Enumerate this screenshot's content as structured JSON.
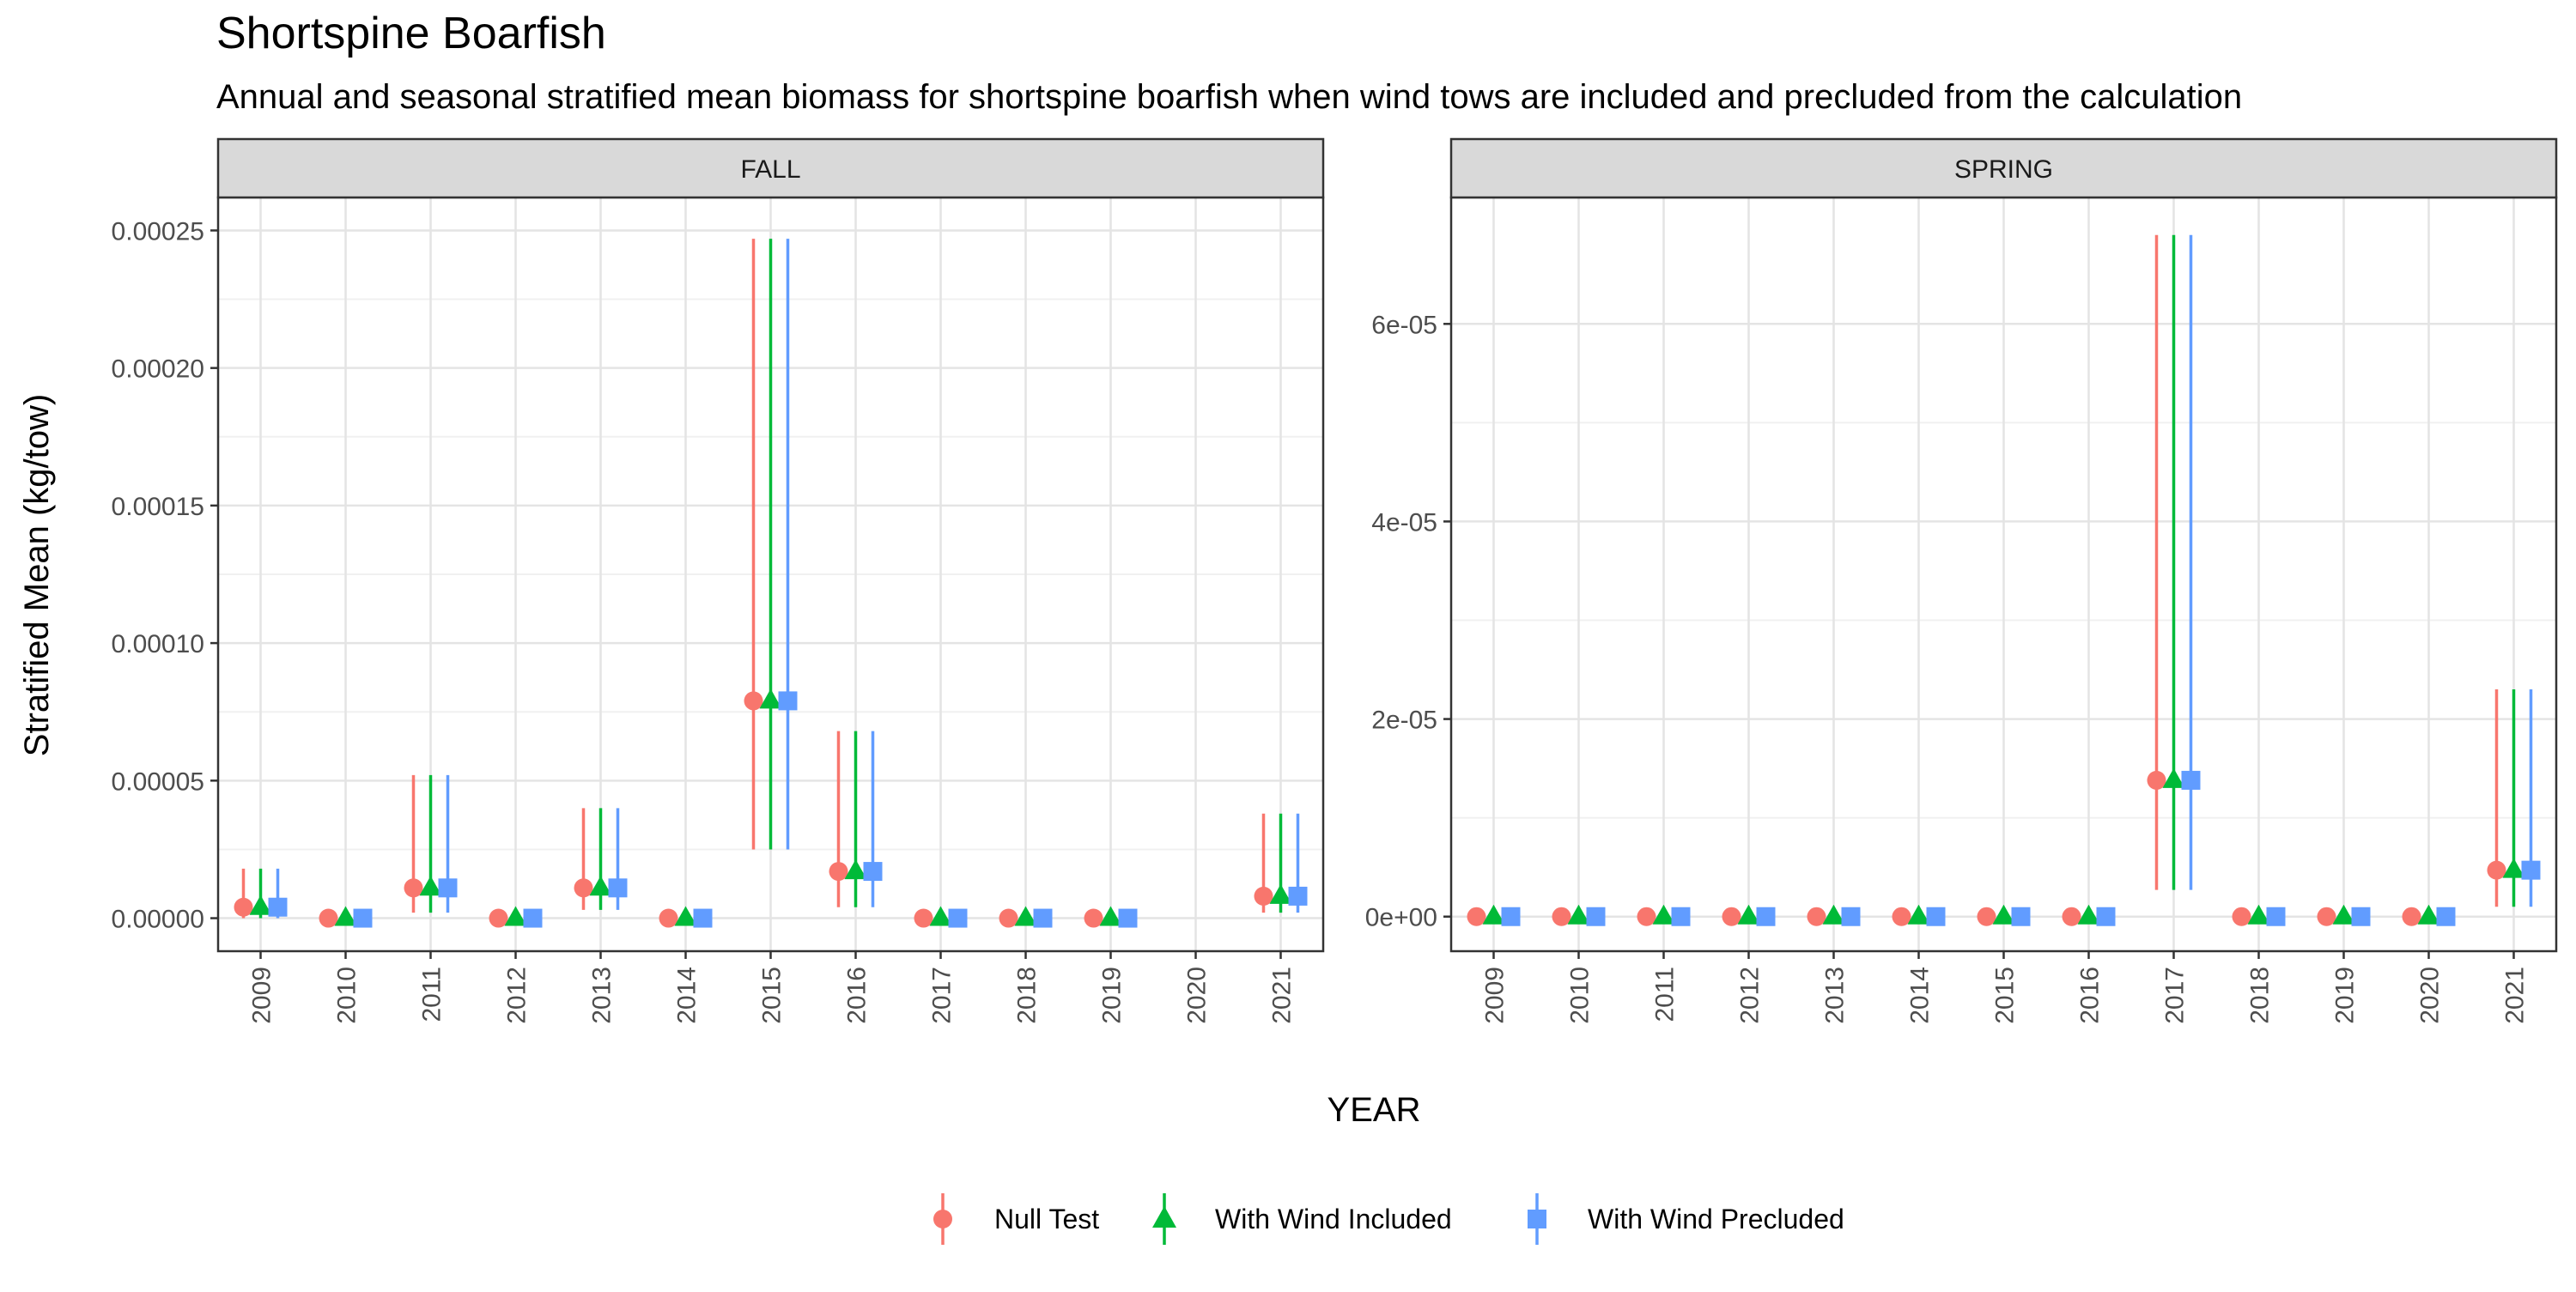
{
  "title": "Shortspine Boarfish",
  "subtitle": "Annual and seasonal stratified mean biomass for shortspine boarfish when wind tows are included and precluded from the calculation",
  "ylabel": "Stratified Mean (kg/tow)",
  "xlabel": "YEAR",
  "colors": {
    "null": "#F8766D",
    "included": "#00BA38",
    "precluded": "#619CFF"
  },
  "legend": {
    "position": "bottom",
    "items": [
      {
        "key": "null",
        "label": "Null Test",
        "shape": "circle"
      },
      {
        "key": "included",
        "label": "With Wind Included",
        "shape": "triangle"
      },
      {
        "key": "precluded",
        "label": "With Wind Precluded",
        "shape": "square"
      }
    ]
  },
  "chart_data": [
    {
      "type": "scatter",
      "panel": "FALL",
      "categories": [
        "2009",
        "2010",
        "2011",
        "2012",
        "2013",
        "2014",
        "2015",
        "2016",
        "2017",
        "2018",
        "2019",
        "2020",
        "2021"
      ],
      "ylim": [
        -1.2e-05,
        0.000262
      ],
      "y_ticks": [
        0,
        5e-05,
        0.0001,
        0.00015,
        0.0002,
        0.00025
      ],
      "y_tick_labels": [
        "0.00000",
        "0.00005",
        "0.00010",
        "0.00015",
        "0.00020",
        "0.00025"
      ],
      "grid": true,
      "series": [
        {
          "name": "Null Test",
          "key": "null",
          "values": [
            4e-06,
            0,
            1.1e-05,
            0,
            1.1e-05,
            0,
            7.9e-05,
            1.7e-05,
            0,
            0,
            0,
            null,
            8e-06
          ],
          "lower": [
            0,
            0,
            2e-06,
            0,
            3e-06,
            0,
            2.5e-05,
            4e-06,
            0,
            0,
            0,
            null,
            2e-06
          ],
          "upper": [
            1.8e-05,
            0,
            5.2e-05,
            0,
            4e-05,
            0,
            0.000247,
            6.8e-05,
            0,
            0,
            0,
            null,
            3.8e-05
          ]
        },
        {
          "name": "With Wind Included",
          "key": "included",
          "values": [
            4e-06,
            0,
            1.1e-05,
            0,
            1.1e-05,
            0,
            7.9e-05,
            1.7e-05,
            0,
            0,
            0,
            null,
            8e-06
          ],
          "lower": [
            0,
            0,
            2e-06,
            0,
            3e-06,
            0,
            2.5e-05,
            4e-06,
            0,
            0,
            0,
            null,
            2e-06
          ],
          "upper": [
            1.8e-05,
            0,
            5.2e-05,
            0,
            4e-05,
            0,
            0.000247,
            6.8e-05,
            0,
            0,
            0,
            null,
            3.8e-05
          ]
        },
        {
          "name": "With Wind Precluded",
          "key": "precluded",
          "values": [
            4e-06,
            0,
            1.1e-05,
            0,
            1.1e-05,
            0,
            7.9e-05,
            1.7e-05,
            0,
            0,
            0,
            null,
            8e-06
          ],
          "lower": [
            0,
            0,
            2e-06,
            0,
            3e-06,
            0,
            2.5e-05,
            4e-06,
            0,
            0,
            0,
            null,
            2e-06
          ],
          "upper": [
            1.8e-05,
            0,
            5.2e-05,
            0,
            4e-05,
            0,
            0.000247,
            6.8e-05,
            0,
            0,
            0,
            null,
            3.8e-05
          ]
        }
      ]
    },
    {
      "type": "scatter",
      "panel": "SPRING",
      "categories": [
        "2009",
        "2010",
        "2011",
        "2012",
        "2013",
        "2014",
        "2015",
        "2016",
        "2017",
        "2018",
        "2019",
        "2020",
        "2021"
      ],
      "ylim": [
        -3.5e-06,
        7.28e-05
      ],
      "y_ticks": [
        0,
        2e-05,
        4e-05,
        6e-05
      ],
      "y_tick_labels": [
        "0e+00",
        "2e-05",
        "4e-05",
        "6e-05"
      ],
      "grid": true,
      "series": [
        {
          "name": "Null Test",
          "key": "null",
          "values": [
            0,
            0,
            0,
            0,
            0,
            0,
            0,
            0,
            1.38e-05,
            0,
            0,
            0,
            4.7e-06
          ],
          "lower": [
            0,
            0,
            0,
            0,
            0,
            0,
            0,
            0,
            2.7e-06,
            0,
            0,
            0,
            1e-06
          ],
          "upper": [
            0,
            0,
            0,
            0,
            0,
            0,
            0,
            0,
            6.9e-05,
            0,
            0,
            0,
            2.3e-05
          ]
        },
        {
          "name": "With Wind Included",
          "key": "included",
          "values": [
            0,
            0,
            0,
            0,
            0,
            0,
            0,
            0,
            1.38e-05,
            0,
            0,
            0,
            4.7e-06
          ],
          "lower": [
            0,
            0,
            0,
            0,
            0,
            0,
            0,
            0,
            2.7e-06,
            0,
            0,
            0,
            1e-06
          ],
          "upper": [
            0,
            0,
            0,
            0,
            0,
            0,
            0,
            0,
            6.9e-05,
            0,
            0,
            0,
            2.3e-05
          ]
        },
        {
          "name": "With Wind Precluded",
          "key": "precluded",
          "values": [
            0,
            0,
            0,
            0,
            0,
            0,
            0,
            0,
            1.38e-05,
            0,
            0,
            0,
            4.7e-06
          ],
          "lower": [
            0,
            0,
            0,
            0,
            0,
            0,
            0,
            0,
            2.7e-06,
            0,
            0,
            0,
            1e-06
          ],
          "upper": [
            0,
            0,
            0,
            0,
            0,
            0,
            0,
            0,
            6.9e-05,
            0,
            0,
            0,
            2.3e-05
          ]
        }
      ]
    }
  ]
}
